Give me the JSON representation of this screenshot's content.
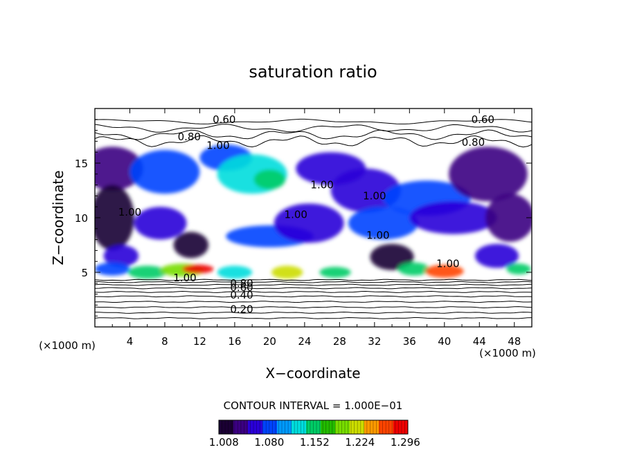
{
  "chart_data": {
    "type": "heatmap",
    "title": "saturation ratio",
    "xlabel": "X−coordinate",
    "ylabel": "Z−coordinate",
    "x_unit": "(×1000 m)",
    "y_unit": "(×1000 m)",
    "xlim": [
      0,
      50
    ],
    "ylim": [
      0,
      20
    ],
    "x_ticks": [
      4,
      8,
      12,
      16,
      20,
      24,
      28,
      32,
      36,
      40,
      44,
      48
    ],
    "x_tick_labels": [
      "4",
      "8",
      "12",
      "16",
      "20",
      "24",
      "28",
      "32",
      "36",
      "40",
      "44",
      "48"
    ],
    "y_ticks": [
      5,
      10,
      15
    ],
    "y_tick_labels": [
      "5",
      "10",
      "15"
    ],
    "contour_interval_text": "CONTOUR INTERVAL = 1.000E−01",
    "colorbar": {
      "range": [
        1.0,
        1.3
      ],
      "tick_values": [
        1.008,
        1.08,
        1.152,
        1.224,
        1.296
      ],
      "tick_labels": [
        "1.008",
        "1.080",
        "1.152",
        "1.224",
        "1.296"
      ],
      "colors": [
        "#1a0033",
        "#3b0082",
        "#2a00d8",
        "#0044ff",
        "#0099ff",
        "#00dddd",
        "#00cc66",
        "#22bb00",
        "#77dd00",
        "#ccdd00",
        "#ff9900",
        "#ff4400",
        "#ee0000"
      ]
    },
    "contour_labels": [
      {
        "text": "0.60",
        "x": 14.8,
        "z": 19.0
      },
      {
        "text": "0.60",
        "x": 44.4,
        "z": 19.0
      },
      {
        "text": "0.80",
        "x": 10.8,
        "z": 17.4
      },
      {
        "text": "0.80",
        "x": 43.3,
        "z": 16.9
      },
      {
        "text": "1.00",
        "x": 14.1,
        "z": 16.6
      },
      {
        "text": "1.00",
        "x": 26.0,
        "z": 13.0
      },
      {
        "text": "1.00",
        "x": 32.0,
        "z": 12.0
      },
      {
        "text": "1.00",
        "x": 4.0,
        "z": 10.5
      },
      {
        "text": "1.00",
        "x": 23.0,
        "z": 10.3
      },
      {
        "text": "1.00",
        "x": 32.4,
        "z": 8.4
      },
      {
        "text": "1.00",
        "x": 40.4,
        "z": 5.8
      },
      {
        "text": "1.00",
        "x": 10.3,
        "z": 4.5
      },
      {
        "text": "0.80",
        "x": 16.8,
        "z": 4.0
      },
      {
        "text": "0.60",
        "x": 16.8,
        "z": 3.6
      },
      {
        "text": "0.40",
        "x": 16.8,
        "z": 2.9
      },
      {
        "text": "0.20",
        "x": 16.8,
        "z": 1.6
      }
    ],
    "cloud_regions": [
      {
        "x": 2.0,
        "z": 14.5,
        "rx": 3.5,
        "rz": 2.0,
        "value": 1.04
      },
      {
        "x": 8.0,
        "z": 14.2,
        "rx": 4.0,
        "rz": 2.0,
        "value": 1.09
      },
      {
        "x": 15.0,
        "z": 15.5,
        "rx": 3.0,
        "rz": 1.2,
        "value": 1.09
      },
      {
        "x": 18.0,
        "z": 14.0,
        "rx": 4.0,
        "rz": 1.8,
        "value": 1.12
      },
      {
        "x": 20.0,
        "z": 13.5,
        "rx": 1.8,
        "rz": 0.9,
        "value": 1.16
      },
      {
        "x": 27.0,
        "z": 14.5,
        "rx": 4.0,
        "rz": 1.5,
        "value": 1.06
      },
      {
        "x": 31.0,
        "z": 12.5,
        "rx": 4.0,
        "rz": 2.0,
        "value": 1.05
      },
      {
        "x": 38.0,
        "z": 11.8,
        "rx": 5.0,
        "rz": 1.6,
        "value": 1.07
      },
      {
        "x": 45.0,
        "z": 14.0,
        "rx": 4.5,
        "rz": 2.5,
        "value": 1.04
      },
      {
        "x": 2.0,
        "z": 10.0,
        "rx": 2.5,
        "rz": 3.0,
        "value": 1.02
      },
      {
        "x": 7.5,
        "z": 9.5,
        "rx": 3.0,
        "rz": 1.5,
        "value": 1.06
      },
      {
        "x": 11.0,
        "z": 7.5,
        "rx": 2.0,
        "rz": 1.2,
        "value": 1.02
      },
      {
        "x": 20.0,
        "z": 8.3,
        "rx": 5.0,
        "rz": 1.0,
        "value": 1.08
      },
      {
        "x": 24.5,
        "z": 9.5,
        "rx": 4.0,
        "rz": 1.8,
        "value": 1.05
      },
      {
        "x": 33.0,
        "z": 9.5,
        "rx": 4.0,
        "rz": 1.5,
        "value": 1.09
      },
      {
        "x": 41.0,
        "z": 10.0,
        "rx": 5.0,
        "rz": 1.5,
        "value": 1.06
      },
      {
        "x": 47.5,
        "z": 10.0,
        "rx": 2.8,
        "rz": 2.2,
        "value": 1.03
      },
      {
        "x": 34.0,
        "z": 6.4,
        "rx": 2.5,
        "rz": 1.2,
        "value": 1.02
      },
      {
        "x": 46.0,
        "z": 6.5,
        "rx": 2.5,
        "rz": 1.1,
        "value": 1.05
      },
      {
        "x": 3.0,
        "z": 6.5,
        "rx": 2.0,
        "rz": 1.0,
        "value": 1.05
      },
      {
        "x": 2.0,
        "z": 5.3,
        "rx": 2.0,
        "rz": 0.6,
        "value": 1.09
      },
      {
        "x": 6.0,
        "z": 5.0,
        "rx": 2.2,
        "rz": 0.6,
        "value": 1.14
      },
      {
        "x": 10.0,
        "z": 5.2,
        "rx": 2.5,
        "rz": 0.6,
        "value": 1.2
      },
      {
        "x": 11.8,
        "z": 5.3,
        "rx": 1.8,
        "rz": 0.4,
        "value": 1.29
      },
      {
        "x": 16.0,
        "z": 5.0,
        "rx": 2.0,
        "rz": 0.6,
        "value": 1.12
      },
      {
        "x": 22.0,
        "z": 5.0,
        "rx": 1.8,
        "rz": 0.6,
        "value": 1.22
      },
      {
        "x": 27.5,
        "z": 5.0,
        "rx": 1.8,
        "rz": 0.5,
        "value": 1.14
      },
      {
        "x": 36.5,
        "z": 5.3,
        "rx": 1.8,
        "rz": 0.6,
        "value": 1.16
      },
      {
        "x": 40.0,
        "z": 5.1,
        "rx": 2.2,
        "rz": 0.6,
        "value": 1.26
      },
      {
        "x": 48.5,
        "z": 5.3,
        "rx": 1.4,
        "rz": 0.5,
        "value": 1.14
      }
    ]
  }
}
